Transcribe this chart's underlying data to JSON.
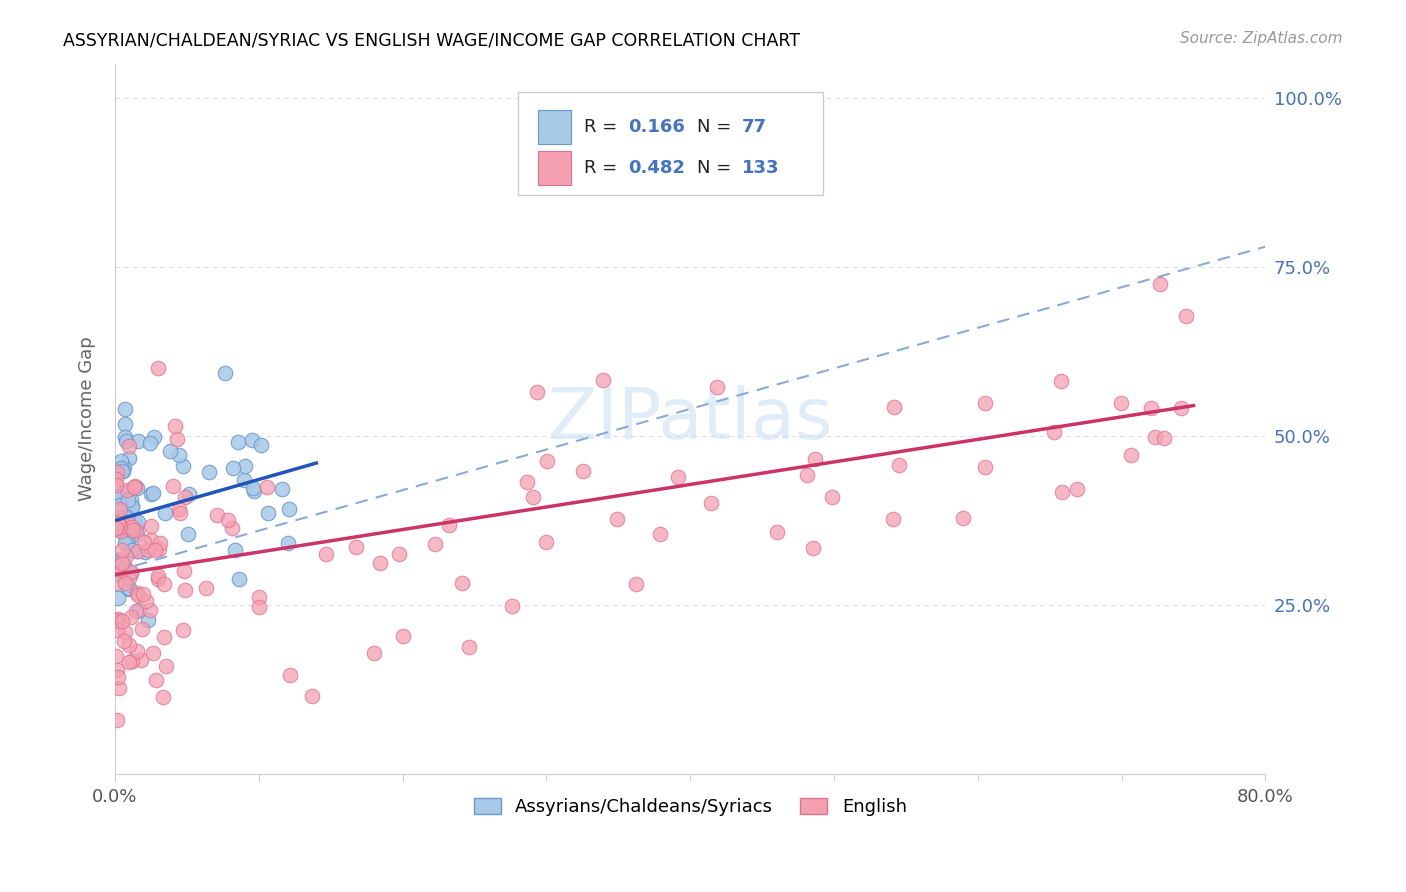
{
  "title": "ASSYRIAN/CHALDEAN/SYRIAC VS ENGLISH WAGE/INCOME GAP CORRELATION CHART",
  "source": "Source: ZipAtlas.com",
  "ylabel": "Wage/Income Gap",
  "x_min": 0.0,
  "x_max": 0.8,
  "y_min": 0.0,
  "y_max": 1.05,
  "x_tick_positions": [
    0.0,
    0.1,
    0.2,
    0.3,
    0.4,
    0.5,
    0.6,
    0.7,
    0.8
  ],
  "x_tick_labels": [
    "0.0%",
    "",
    "",
    "",
    "",
    "",
    "",
    "",
    "80.0%"
  ],
  "y_ticks": [
    0.25,
    0.5,
    0.75,
    1.0
  ],
  "y_tick_labels_right": [
    "25.0%",
    "50.0%",
    "75.0%",
    "100.0%"
  ],
  "blue_face": "#a8c8e8",
  "blue_edge": "#6699cc",
  "pink_face": "#f4a0b0",
  "pink_edge": "#e07090",
  "blue_line_color": "#2255bb",
  "pink_line_color": "#cc3366",
  "dashed_line_color": "#88aadd",
  "right_axis_color": "#4472c4",
  "grid_color": "#dddddd",
  "spine_color": "#cccccc",
  "legend_label1": "Assyrians/Chaldeans/Syriacs",
  "legend_label2": "English",
  "watermark": "ZIPatlas",
  "blue_line_x0": 0.0,
  "blue_line_y0": 0.375,
  "blue_line_x1": 0.14,
  "blue_line_y1": 0.46,
  "pink_line_x0": 0.0,
  "pink_line_y0": 0.295,
  "pink_line_x1": 0.75,
  "pink_line_y1": 0.545,
  "dash_line_x0": 0.0,
  "dash_line_y0": 0.3,
  "dash_line_x1": 0.8,
  "dash_line_y1": 0.78
}
